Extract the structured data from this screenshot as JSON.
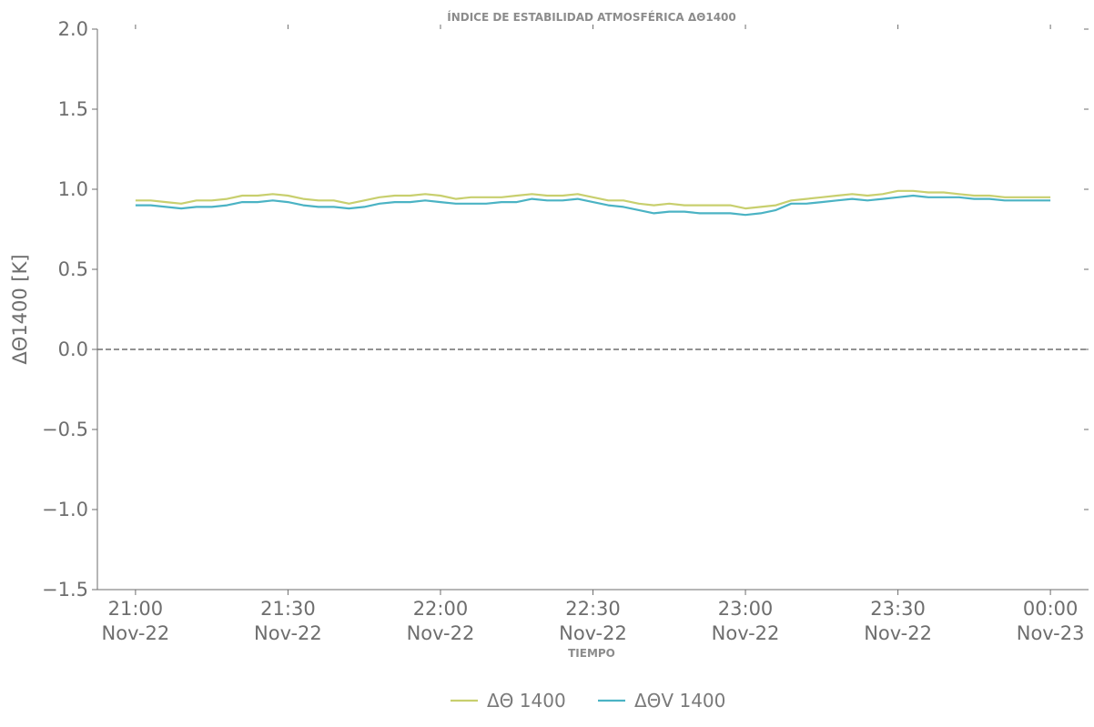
{
  "chart_data": {
    "type": "line",
    "title": "ÍNDICE DE ESTABILIDAD ATMOSFÉRICA ΔΘ1400",
    "xlabel": "TIEMPO",
    "ylabel": "ΔΘ1400 [K]",
    "ylim": [
      -1.5,
      2.0
    ],
    "xlim_minutes_from_start": [
      -7.5,
      187.5
    ],
    "x_ticks": [
      {
        "minute": 0,
        "time": "21:00",
        "date": "Nov-22"
      },
      {
        "minute": 30,
        "time": "21:30",
        "date": "Nov-22"
      },
      {
        "minute": 60,
        "time": "22:00",
        "date": "Nov-22"
      },
      {
        "minute": 90,
        "time": "22:30",
        "date": "Nov-22"
      },
      {
        "minute": 120,
        "time": "23:00",
        "date": "Nov-22"
      },
      {
        "minute": 150,
        "time": "23:30",
        "date": "Nov-22"
      },
      {
        "minute": 180,
        "time": "00:00",
        "date": "Nov-23"
      }
    ],
    "y_ticks": [
      "2.0",
      "1.5",
      "1.0",
      "0.5",
      "0.0",
      "−0.5",
      "−1.0",
      "−1.5"
    ],
    "y_tick_values": [
      2.0,
      1.5,
      1.0,
      0.5,
      0.0,
      -0.5,
      -1.0,
      -1.5
    ],
    "reference_line": {
      "y": 0.0,
      "style": "dashed",
      "color": "#6e6e6e"
    },
    "legend_position": "bottom-center",
    "grid": false,
    "x_step_minutes": 3,
    "series": [
      {
        "name": "ΔΘ 1400",
        "color": "#c8cf6e",
        "values": [
          0.93,
          0.93,
          0.92,
          0.91,
          0.93,
          0.93,
          0.94,
          0.96,
          0.96,
          0.97,
          0.96,
          0.94,
          0.93,
          0.93,
          0.91,
          0.93,
          0.95,
          0.96,
          0.96,
          0.97,
          0.96,
          0.94,
          0.95,
          0.95,
          0.95,
          0.96,
          0.97,
          0.96,
          0.96,
          0.97,
          0.95,
          0.93,
          0.93,
          0.91,
          0.9,
          0.91,
          0.9,
          0.9,
          0.9,
          0.9,
          0.88,
          0.89,
          0.9,
          0.93,
          0.94,
          0.95,
          0.96,
          0.97,
          0.96,
          0.97,
          0.99,
          0.99,
          0.98,
          0.98,
          0.97,
          0.96,
          0.96,
          0.95,
          0.95,
          0.95,
          0.95
        ]
      },
      {
        "name": "ΔΘV 1400",
        "color": "#4bb3c4",
        "values": [
          0.9,
          0.9,
          0.89,
          0.88,
          0.89,
          0.89,
          0.9,
          0.92,
          0.92,
          0.93,
          0.92,
          0.9,
          0.89,
          0.89,
          0.88,
          0.89,
          0.91,
          0.92,
          0.92,
          0.93,
          0.92,
          0.91,
          0.91,
          0.91,
          0.92,
          0.92,
          0.94,
          0.93,
          0.93,
          0.94,
          0.92,
          0.9,
          0.89,
          0.87,
          0.85,
          0.86,
          0.86,
          0.85,
          0.85,
          0.85,
          0.84,
          0.85,
          0.87,
          0.91,
          0.91,
          0.92,
          0.93,
          0.94,
          0.93,
          0.94,
          0.95,
          0.96,
          0.95,
          0.95,
          0.95,
          0.94,
          0.94,
          0.93,
          0.93,
          0.93,
          0.93
        ]
      }
    ]
  }
}
